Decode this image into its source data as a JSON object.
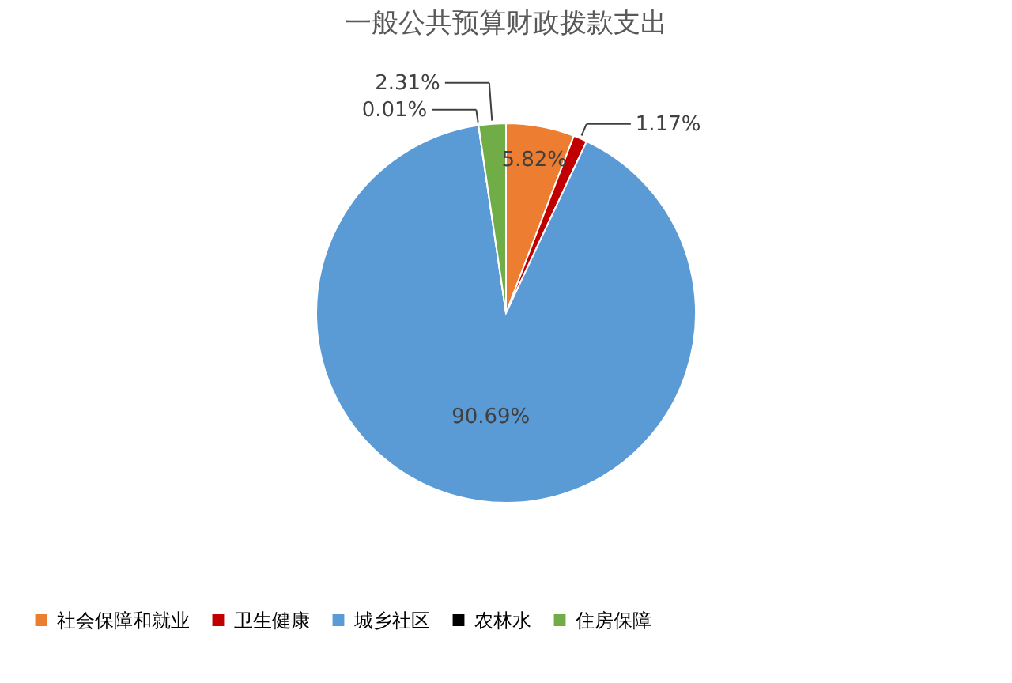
{
  "chart_data": {
    "type": "pie",
    "title": "一般公共预算财政拨款支出",
    "categories": [
      "社会保障和就业",
      "卫生健康",
      "城乡社区",
      "农林水",
      "住房保障"
    ],
    "values": [
      5.82,
      1.17,
      90.69,
      0.01,
      2.31
    ],
    "colors": [
      "#ed7d31",
      "#c00000",
      "#5b9bd5",
      "#000000",
      "#70ad47"
    ],
    "value_labels": [
      "5.82%",
      "1.17%",
      "90.69%",
      "0.01%",
      "2.31%"
    ],
    "legend": "bottom"
  }
}
